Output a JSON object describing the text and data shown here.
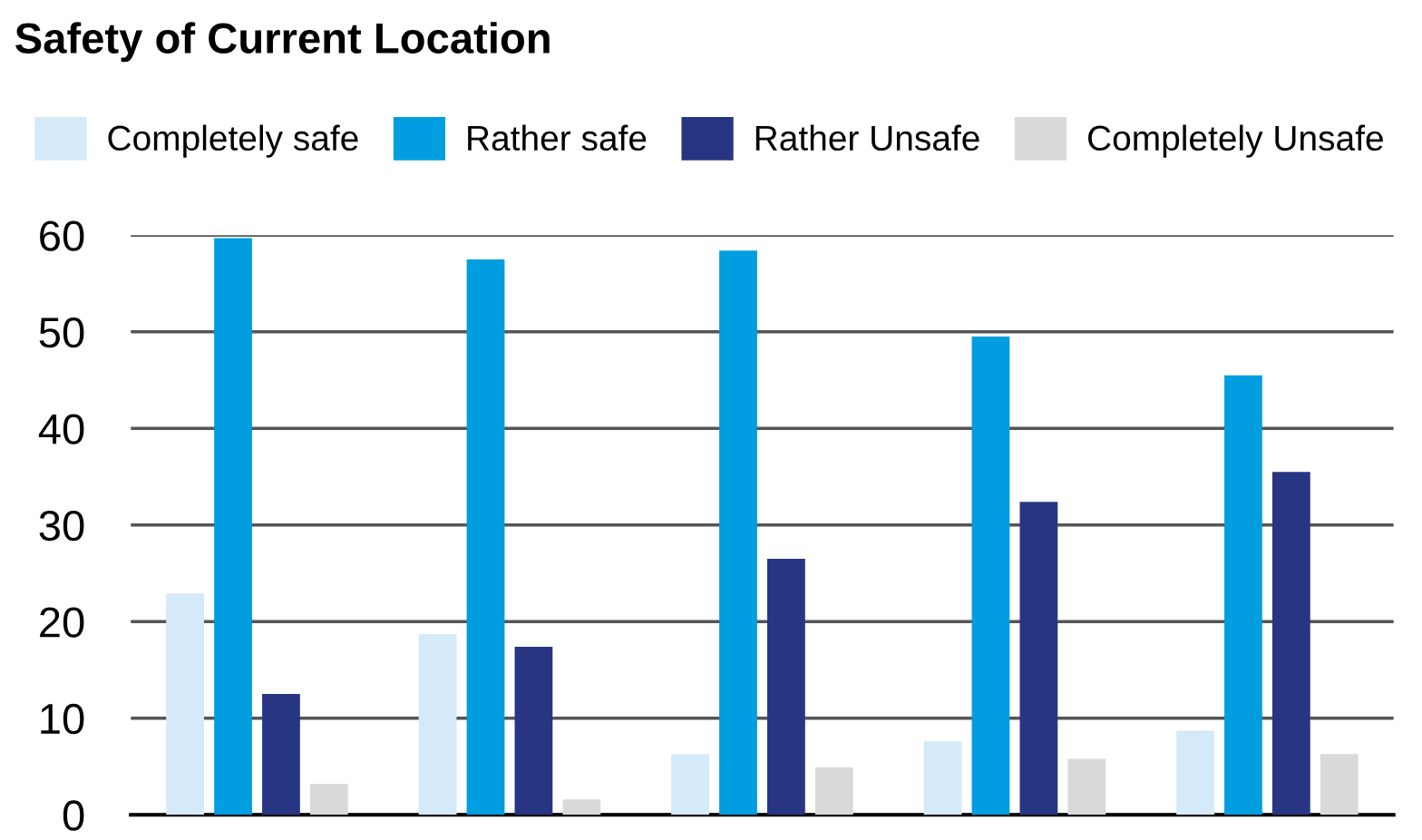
{
  "chart_data": {
    "type": "bar",
    "title": "Safety of Current Location",
    "categories": [
      null,
      null,
      null,
      null,
      null
    ],
    "series": [
      {
        "name": "Completely safe",
        "color": "#d4eaf9",
        "values": [
          22.9,
          18.7,
          6.3,
          7.6,
          8.7
        ]
      },
      {
        "name": "Rather safe",
        "color": "#009ee0",
        "values": [
          59.7,
          57.5,
          58.4,
          49.5,
          45.5
        ]
      },
      {
        "name": "Rather Unsafe",
        "color": "#283583",
        "values": [
          12.5,
          17.4,
          26.5,
          32.4,
          35.5
        ]
      },
      {
        "name": "Completely Unsafe",
        "color": "#d9d9d9",
        "values": [
          3.2,
          1.6,
          4.9,
          5.8,
          6.3
        ]
      }
    ],
    "ylim": [
      0,
      60
    ],
    "yticks": [
      0,
      10,
      20,
      30,
      40,
      50,
      60
    ],
    "grid": "y",
    "legend": "top left"
  }
}
